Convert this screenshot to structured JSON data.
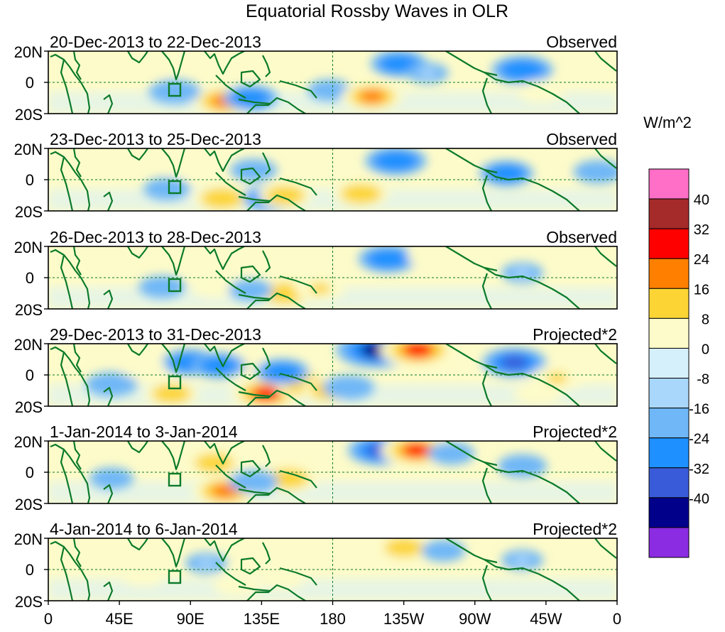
{
  "chart_data": {
    "type": "heatmap",
    "title": "Equatorial Rossby Waves in OLR",
    "units": "W/m^2",
    "latitude_ticks": [
      "20N",
      "0",
      "20S"
    ],
    "longitude_ticks": [
      "0",
      "45E",
      "90E",
      "135E",
      "180",
      "135W",
      "90W",
      "45W",
      "0"
    ],
    "lat_range": [
      -20,
      20
    ],
    "lon_range": [
      0,
      360
    ],
    "colorbar": {
      "colors": [
        "#8b2be2",
        "#00008b",
        "#3a5bd9",
        "#1e90ff",
        "#6fb7f7",
        "#a9d7fb",
        "#d6f0fb",
        "#fdfbc9",
        "#fcd535",
        "#ff7f00",
        "#ff0000",
        "#a52a2a",
        "#ff6ec7"
      ],
      "tick_labels": [
        "-40",
        "-32",
        "-24",
        "-16",
        "-8",
        "0",
        "8",
        "16",
        "24",
        "32",
        "40"
      ]
    },
    "panels": [
      {
        "date": "20-Dec-2013 to 22-Dec-2013",
        "label": "Observed",
        "anomalies": [
          {
            "lon": 112,
            "lat": -12,
            "v": 28
          },
          {
            "lon": 128,
            "lat": -10,
            "v": -18
          },
          {
            "lon": 80,
            "lat": -6,
            "v": -16
          },
          {
            "lon": 178,
            "lat": -5,
            "v": -10
          },
          {
            "lon": 205,
            "lat": -9,
            "v": 24
          },
          {
            "lon": 222,
            "lat": 12,
            "v": -20
          },
          {
            "lon": 300,
            "lat": 8,
            "v": -24
          },
          {
            "lon": 312,
            "lat": -6,
            "v": 12
          },
          {
            "lon": 62,
            "lat": 10,
            "v": 10
          },
          {
            "lon": 355,
            "lat": 4,
            "v": 14
          },
          {
            "lon": 240,
            "lat": 6,
            "v": -8
          }
        ]
      },
      {
        "date": "23-Dec-2013 to 25-Dec-2013",
        "label": "Observed",
        "anomalies": [
          {
            "lon": 110,
            "lat": -12,
            "v": 22
          },
          {
            "lon": 140,
            "lat": -12,
            "v": -18
          },
          {
            "lon": 150,
            "lat": -10,
            "v": 18
          },
          {
            "lon": 198,
            "lat": -9,
            "v": 20
          },
          {
            "lon": 220,
            "lat": 12,
            "v": -24
          },
          {
            "lon": 290,
            "lat": 4,
            "v": -18
          },
          {
            "lon": 348,
            "lat": 5,
            "v": -14
          },
          {
            "lon": 75,
            "lat": -6,
            "v": -12
          },
          {
            "lon": 130,
            "lat": 6,
            "v": -12
          },
          {
            "lon": 90,
            "lat": 8,
            "v": 10
          }
        ]
      },
      {
        "date": "26-Dec-2013 to 28-Dec-2013",
        "label": "Observed",
        "anomalies": [
          {
            "lon": 150,
            "lat": -10,
            "v": 22
          },
          {
            "lon": 172,
            "lat": -7,
            "v": 16
          },
          {
            "lon": 215,
            "lat": 12,
            "v": -22
          },
          {
            "lon": 242,
            "lat": 14,
            "v": 12
          },
          {
            "lon": 72,
            "lat": -6,
            "v": -12
          },
          {
            "lon": 105,
            "lat": -6,
            "v": 12
          },
          {
            "lon": 128,
            "lat": -8,
            "v": -10
          },
          {
            "lon": 300,
            "lat": 3,
            "v": -8
          },
          {
            "lon": 340,
            "lat": 5,
            "v": 10
          }
        ]
      },
      {
        "date": "29-Dec-2013 to 31-Dec-2013",
        "label": "Projected*2",
        "anomalies": [
          {
            "lon": 208,
            "lat": 16,
            "v": -40
          },
          {
            "lon": 234,
            "lat": 16,
            "v": 36
          },
          {
            "lon": 138,
            "lat": -12,
            "v": 32
          },
          {
            "lon": 162,
            "lat": -6,
            "v": 22
          },
          {
            "lon": 178,
            "lat": -10,
            "v": 18
          },
          {
            "lon": 120,
            "lat": 6,
            "v": 16
          },
          {
            "lon": 90,
            "lat": 8,
            "v": -20
          },
          {
            "lon": 108,
            "lat": 6,
            "v": -18
          },
          {
            "lon": 148,
            "lat": 2,
            "v": -18
          },
          {
            "lon": 190,
            "lat": -8,
            "v": -16
          },
          {
            "lon": 40,
            "lat": -6,
            "v": -16
          },
          {
            "lon": 78,
            "lat": -12,
            "v": 18
          },
          {
            "lon": 295,
            "lat": 8,
            "v": -26
          },
          {
            "lon": 322,
            "lat": -2,
            "v": 16
          },
          {
            "lon": 310,
            "lat": -12,
            "v": 14
          },
          {
            "lon": 60,
            "lat": 4,
            "v": 10
          }
        ]
      },
      {
        "date": "1-Jan-2014 to 3-Jan-2014",
        "label": "Projected*2",
        "anomalies": [
          {
            "lon": 210,
            "lat": 14,
            "v": -26
          },
          {
            "lon": 233,
            "lat": 14,
            "v": 32
          },
          {
            "lon": 112,
            "lat": -12,
            "v": 28
          },
          {
            "lon": 152,
            "lat": -4,
            "v": 20
          },
          {
            "lon": 130,
            "lat": -6,
            "v": -14
          },
          {
            "lon": 105,
            "lat": 6,
            "v": 18
          },
          {
            "lon": 255,
            "lat": 12,
            "v": -12
          },
          {
            "lon": 300,
            "lat": 4,
            "v": -14
          },
          {
            "lon": 40,
            "lat": -4,
            "v": -10
          }
        ]
      },
      {
        "date": "4-Jan-2014 to 6-Jan-2014",
        "label": "Projected*2",
        "anomalies": [
          {
            "lon": 225,
            "lat": 14,
            "v": 18
          },
          {
            "lon": 250,
            "lat": 12,
            "v": -10
          },
          {
            "lon": 120,
            "lat": -10,
            "v": 14
          },
          {
            "lon": 148,
            "lat": -6,
            "v": 10
          },
          {
            "lon": 100,
            "lat": 4,
            "v": -8
          },
          {
            "lon": 300,
            "lat": 6,
            "v": -8
          },
          {
            "lon": 60,
            "lat": -4,
            "v": 8
          }
        ]
      }
    ]
  }
}
